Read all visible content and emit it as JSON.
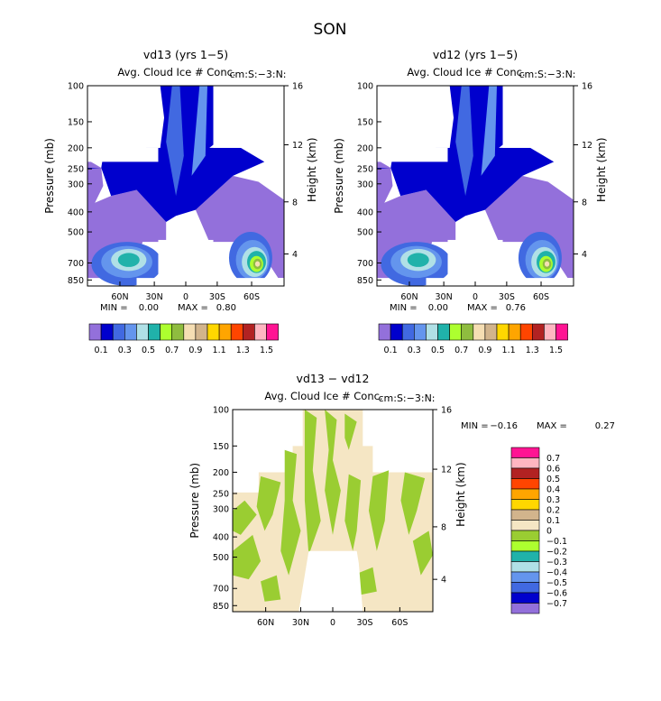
{
  "page_title": "SON",
  "chart_data": [
    {
      "type": "heatmap",
      "title": "vd13 (yrs 1−5)",
      "subtitle": "Avg. Cloud Ice # Conc.",
      "units": "cm:S:−3:N:",
      "ylabel": "Pressure (mb)",
      "y2label": "Height (km)",
      "x_ticks": [
        "60N",
        "30N",
        "0",
        "30S",
        "60S"
      ],
      "y_ticks": [
        "100",
        "150",
        "200",
        "250",
        "300",
        "400",
        "500",
        "700",
        "850"
      ],
      "y2_ticks": [
        "16",
        "12",
        "8",
        "4"
      ],
      "min_label": "MIN =",
      "min_value": "0.00",
      "max_label": "MAX =",
      "max_value": "0.80",
      "colorbar_labels": [
        "0.1",
        "0.3",
        "0.5",
        "0.7",
        "0.9",
        "1.1",
        "1.3",
        "1.5"
      ],
      "colorbar_colors": [
        "#9370db",
        "#0000cd",
        "#4169e1",
        "#6495ed",
        "#b0e0e6",
        "#20b2aa",
        "#adff2f",
        "#8fbc3f",
        "#f5deb3",
        "#d2b48c",
        "#ffd700",
        "#ffa500",
        "#ff4500",
        "#b22222",
        "#ffb6c1",
        "#ff1493"
      ],
      "grid": false
    },
    {
      "type": "heatmap",
      "title": "vd12 (yrs 1−5)",
      "subtitle": "Avg. Cloud Ice # Conc.",
      "units": "cm:S:−3:N:",
      "ylabel": "Pressure (mb)",
      "y2label": "Height (km)",
      "x_ticks": [
        "60N",
        "30N",
        "0",
        "30S",
        "60S"
      ],
      "y_ticks": [
        "100",
        "150",
        "200",
        "250",
        "300",
        "400",
        "500",
        "700",
        "850"
      ],
      "y2_ticks": [
        "16",
        "12",
        "8",
        "4"
      ],
      "min_label": "MIN =",
      "min_value": "0.00",
      "max_label": "MAX =",
      "max_value": "0.76",
      "colorbar_labels": [
        "0.1",
        "0.3",
        "0.5",
        "0.7",
        "0.9",
        "1.1",
        "1.3",
        "1.5"
      ],
      "colorbar_colors": [
        "#9370db",
        "#0000cd",
        "#4169e1",
        "#6495ed",
        "#b0e0e6",
        "#20b2aa",
        "#adff2f",
        "#8fbc3f",
        "#f5deb3",
        "#d2b48c",
        "#ffd700",
        "#ffa500",
        "#ff4500",
        "#b22222",
        "#ffb6c1",
        "#ff1493"
      ],
      "grid": false
    },
    {
      "type": "heatmap",
      "title": "vd13 − vd12",
      "subtitle": "Avg. Cloud Ice # Conc.",
      "units": "cm:S:−3:N:",
      "ylabel": "Pressure (mb)",
      "y2label": "Height (km)",
      "x_ticks": [
        "60N",
        "30N",
        "0",
        "30S",
        "60S"
      ],
      "y_ticks": [
        "100",
        "150",
        "200",
        "250",
        "300",
        "400",
        "500",
        "700",
        "850"
      ],
      "y2_ticks": [
        "16",
        "12",
        "8",
        "4"
      ],
      "min_label": "MIN =",
      "min_value": "−0.16",
      "max_label": "MAX =",
      "max_value": "0.27",
      "colorbar_labels": [
        "0.7",
        "0.6",
        "0.5",
        "0.4",
        "0.3",
        "0.2",
        "0.1",
        "0",
        "−0.1",
        "−0.2",
        "−0.3",
        "−0.4",
        "−0.5",
        "−0.6",
        "−0.7"
      ],
      "colorbar_colors": [
        "#ff1493",
        "#ffb6c1",
        "#b22222",
        "#ff4500",
        "#ffa500",
        "#ffd700",
        "#d2b48c",
        "#f5e6c4",
        "#9acd32",
        "#adff2f",
        "#20b2aa",
        "#b0e0e6",
        "#6495ed",
        "#4169e1",
        "#0000cd",
        "#9370db"
      ],
      "grid": false
    }
  ]
}
